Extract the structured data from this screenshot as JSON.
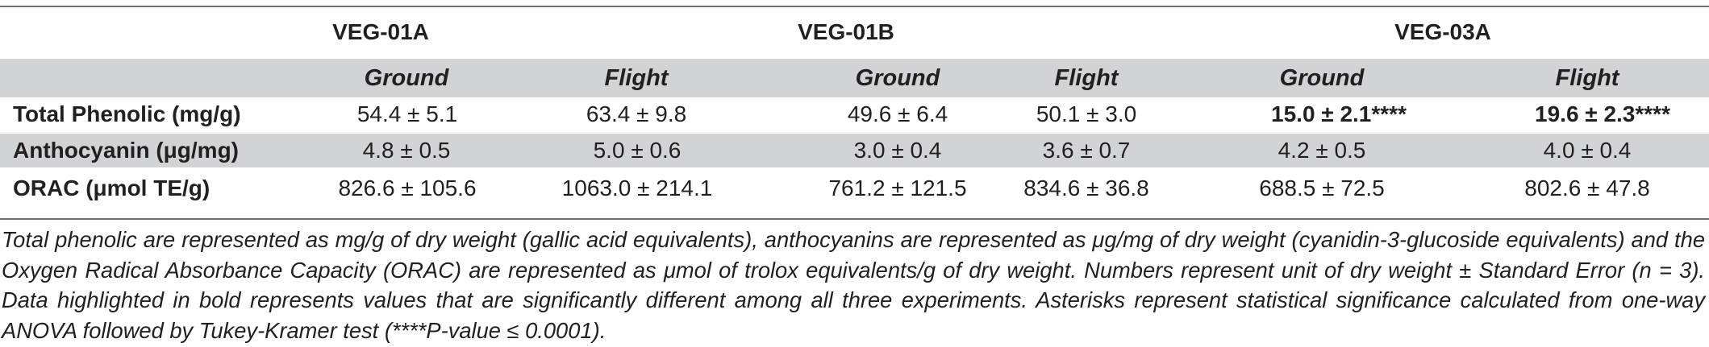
{
  "table": {
    "groups": [
      "VEG-01A",
      "VEG-01B",
      "VEG-03A"
    ],
    "subheaders": [
      "Ground",
      "Flight",
      "Ground",
      "Flight",
      "Ground",
      "Flight"
    ],
    "rows": [
      {
        "label": "Total Phenolic (mg/g)",
        "cells": [
          "54.4 ± 5.1",
          "63.4 ± 9.8",
          "49.6 ± 6.4",
          "50.1 ± 3.0",
          "15.0 ± 2.1****",
          "19.6 ± 2.3****"
        ],
        "bold": [
          false,
          false,
          false,
          false,
          true,
          true
        ]
      },
      {
        "label": "Anthocyanin (μg/mg)",
        "cells": [
          "4.8 ± 0.5",
          "5.0 ± 0.6",
          "3.0 ± 0.4",
          "3.6 ± 0.7",
          "4.2 ± 0.5",
          "4.0 ± 0.4"
        ],
        "bold": [
          false,
          false,
          false,
          false,
          false,
          false
        ]
      },
      {
        "label": "ORAC (μmol TE/g)",
        "cells": [
          "826.6 ± 105.6",
          "1063.0 ± 214.1",
          "761.2 ± 121.5",
          "834.6 ± 36.8",
          "688.5 ± 72.5",
          "802.6 ± 47.8"
        ],
        "bold": [
          false,
          false,
          false,
          false,
          false,
          false
        ]
      }
    ],
    "shading_color": "#d1d3d4",
    "rule_color": "#6d6e71"
  },
  "footnote": "Total phenolic are represented as mg/g of dry weight (gallic acid equivalents), anthocyanins are represented as μg/mg of dry weight (cyanidin-3-glucoside equivalents) and the Oxygen Radical Absorbance Capacity (ORAC) are represented as μmol of trolox equivalents/g of dry weight. Numbers represent unit of dry weight ± Standard Error (n = 3). Data highlighted in bold represents values that are significantly different among all three experiments. Asterisks represent statistical significance calculated from one-way ANOVA followed by Tukey-Kramer test (****P-value ≤ 0.0001)."
}
